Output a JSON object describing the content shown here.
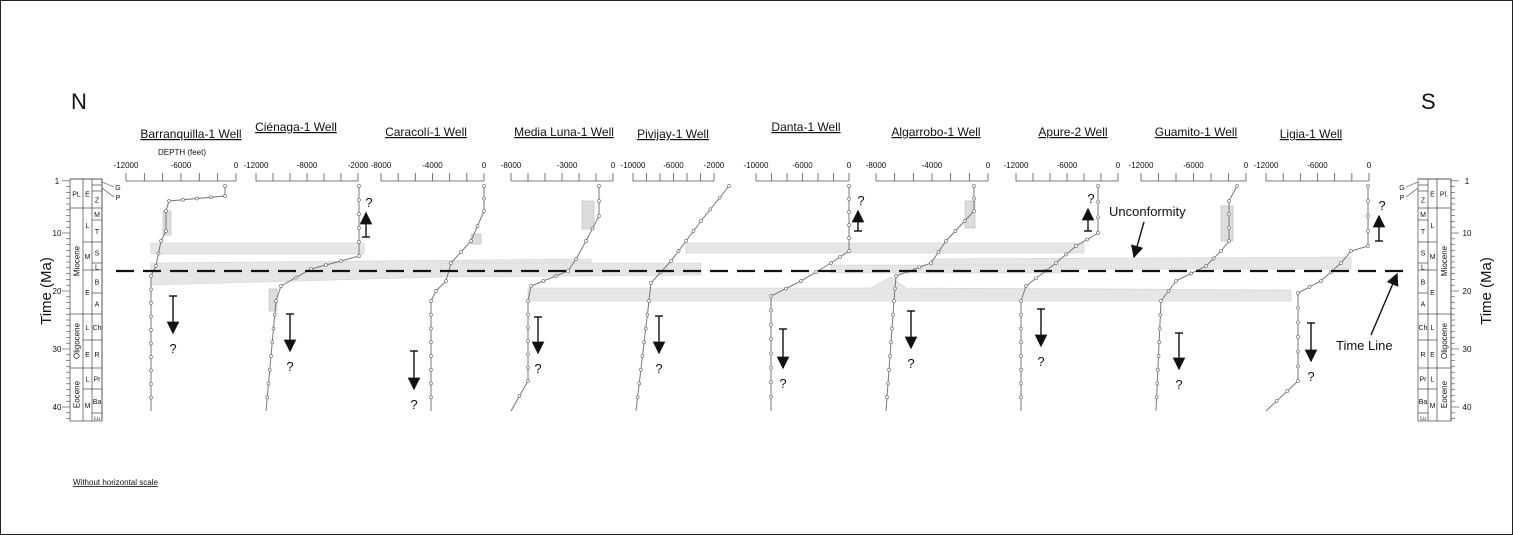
{
  "compass": {
    "north": "N",
    "south": "S"
  },
  "depth_axis_label": "DEPTH (feet)",
  "time_axis_label": "Time (Ma)",
  "time_ticks": [
    "1",
    "10",
    "20",
    "30",
    "40"
  ],
  "time_ticks_values": [
    1,
    10,
    20,
    30,
    40
  ],
  "time_line_age_ma": 16.5,
  "epochs": [
    {
      "label": "PL",
      "label_right": "Pl."
    },
    {
      "label": "Miocene"
    },
    {
      "label": "Oligocene"
    },
    {
      "label": "Eocene"
    }
  ],
  "subepochs": [
    "E",
    "L",
    "M",
    "E",
    "L",
    "E",
    "L",
    "M"
  ],
  "stages": [
    "G",
    "P",
    "Z",
    "M",
    "T",
    "S",
    "L",
    "B",
    "A",
    "Ch",
    "R",
    "Pr",
    "Ba",
    "Lu"
  ],
  "wells": [
    {
      "name": "Barranquilla-1 Well",
      "ticks": [
        "-12000",
        "-6000",
        "0"
      ]
    },
    {
      "name": "Ciénaga-1 Well",
      "ticks": [
        "-12000",
        "-8000",
        "-2000"
      ]
    },
    {
      "name": "Caracolí-1 Well",
      "ticks": [
        "-8000",
        "-4000",
        "0"
      ]
    },
    {
      "name": "Media Luna-1 Well",
      "ticks": [
        "-8000",
        "-3000",
        "0"
      ]
    },
    {
      "name": "Pivijay-1 Well",
      "ticks": [
        "-10000",
        "-6000",
        "-2000"
      ]
    },
    {
      "name": "Danta-1 Well",
      "ticks": [
        "-10000",
        "-6000",
        "0"
      ]
    },
    {
      "name": "Algarrobo-1 Well",
      "ticks": [
        "-8000",
        "-4000",
        "0"
      ]
    },
    {
      "name": "Apure-2 Well",
      "ticks": [
        "-12000",
        "-6000",
        "0"
      ]
    },
    {
      "name": "Guamito-1 Well",
      "ticks": [
        "-12000",
        "-6000",
        "0"
      ]
    },
    {
      "name": "Ligia-1 Well",
      "ticks": [
        "-12000",
        "-6000",
        "0"
      ]
    }
  ],
  "annotations": {
    "unconformity": "Unconformity",
    "time_line": "Time Line",
    "unknown_mark": "?",
    "scale_note": "Without horizontal scale"
  },
  "colors": {
    "band": "#e6e6e6",
    "curve": "#777777",
    "ink": "#111111"
  }
}
